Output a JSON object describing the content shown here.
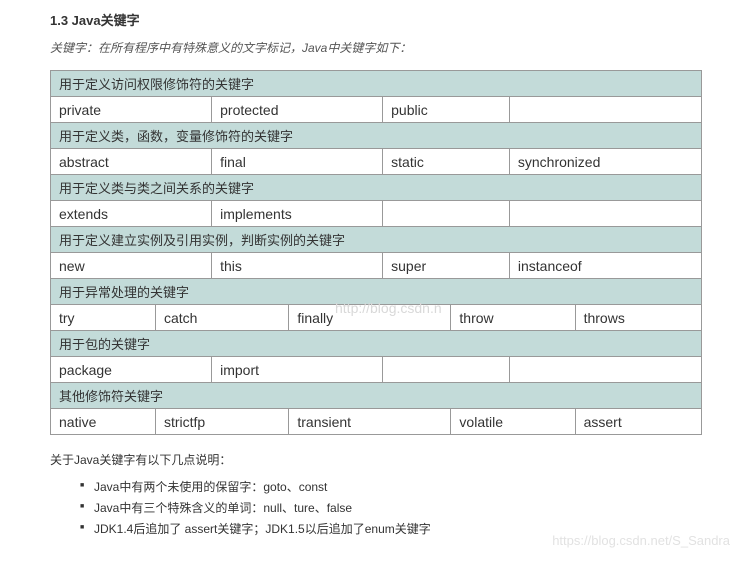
{
  "title": "1.3 Java关键字",
  "subtitle": "关键字：在所有程序中有特殊意义的文字标记，Java中关键字如下：",
  "table": {
    "header_bg": "#c3dbd9",
    "cell_bg": "#ffffff",
    "border_color": "#999999",
    "sections": [
      {
        "header": "用于定义访问权限修饰符的关键字",
        "cols": 4,
        "cells": [
          "private",
          "protected",
          "public",
          ""
        ]
      },
      {
        "header": "用于定义类，函数，变量修饰符的关键字",
        "cols": 4,
        "cells": [
          "abstract",
          "final",
          "static",
          "synchronized"
        ]
      },
      {
        "header": "用于定义类与类之间关系的关键字",
        "cols": 4,
        "cells": [
          "extends",
          "implements",
          "",
          ""
        ]
      },
      {
        "header": "用于定义建立实例及引用实例，判断实例的关键字",
        "cols": 4,
        "cells": [
          "new",
          "this",
          "super",
          "instanceof"
        ]
      },
      {
        "header": "用于异常处理的关键字",
        "cols": 5,
        "cells": [
          "try",
          "catch",
          "finally",
          "throw",
          "throws"
        ]
      },
      {
        "header": "用于包的关键字",
        "cols": 4,
        "cells": [
          "package",
          "import",
          "",
          ""
        ]
      },
      {
        "header": "其他修饰符关键字",
        "cols": 5,
        "cells": [
          "native",
          "strictfp",
          "transient",
          "volatile",
          "assert"
        ]
      }
    ]
  },
  "notes_title": "关于Java关键字有以下几点说明：",
  "notes": [
    "Java中有两个未使用的保留字：goto、const",
    "Java中有三个特殊含义的单词：null、ture、false",
    "JDK1.4后追加了 assert关键字；JDK1.5以后追加了enum关键字"
  ],
  "watermark_center": "http://blog.csdn.n",
  "watermark_bottom": "https://blog.csdn.net/S_Sandra"
}
